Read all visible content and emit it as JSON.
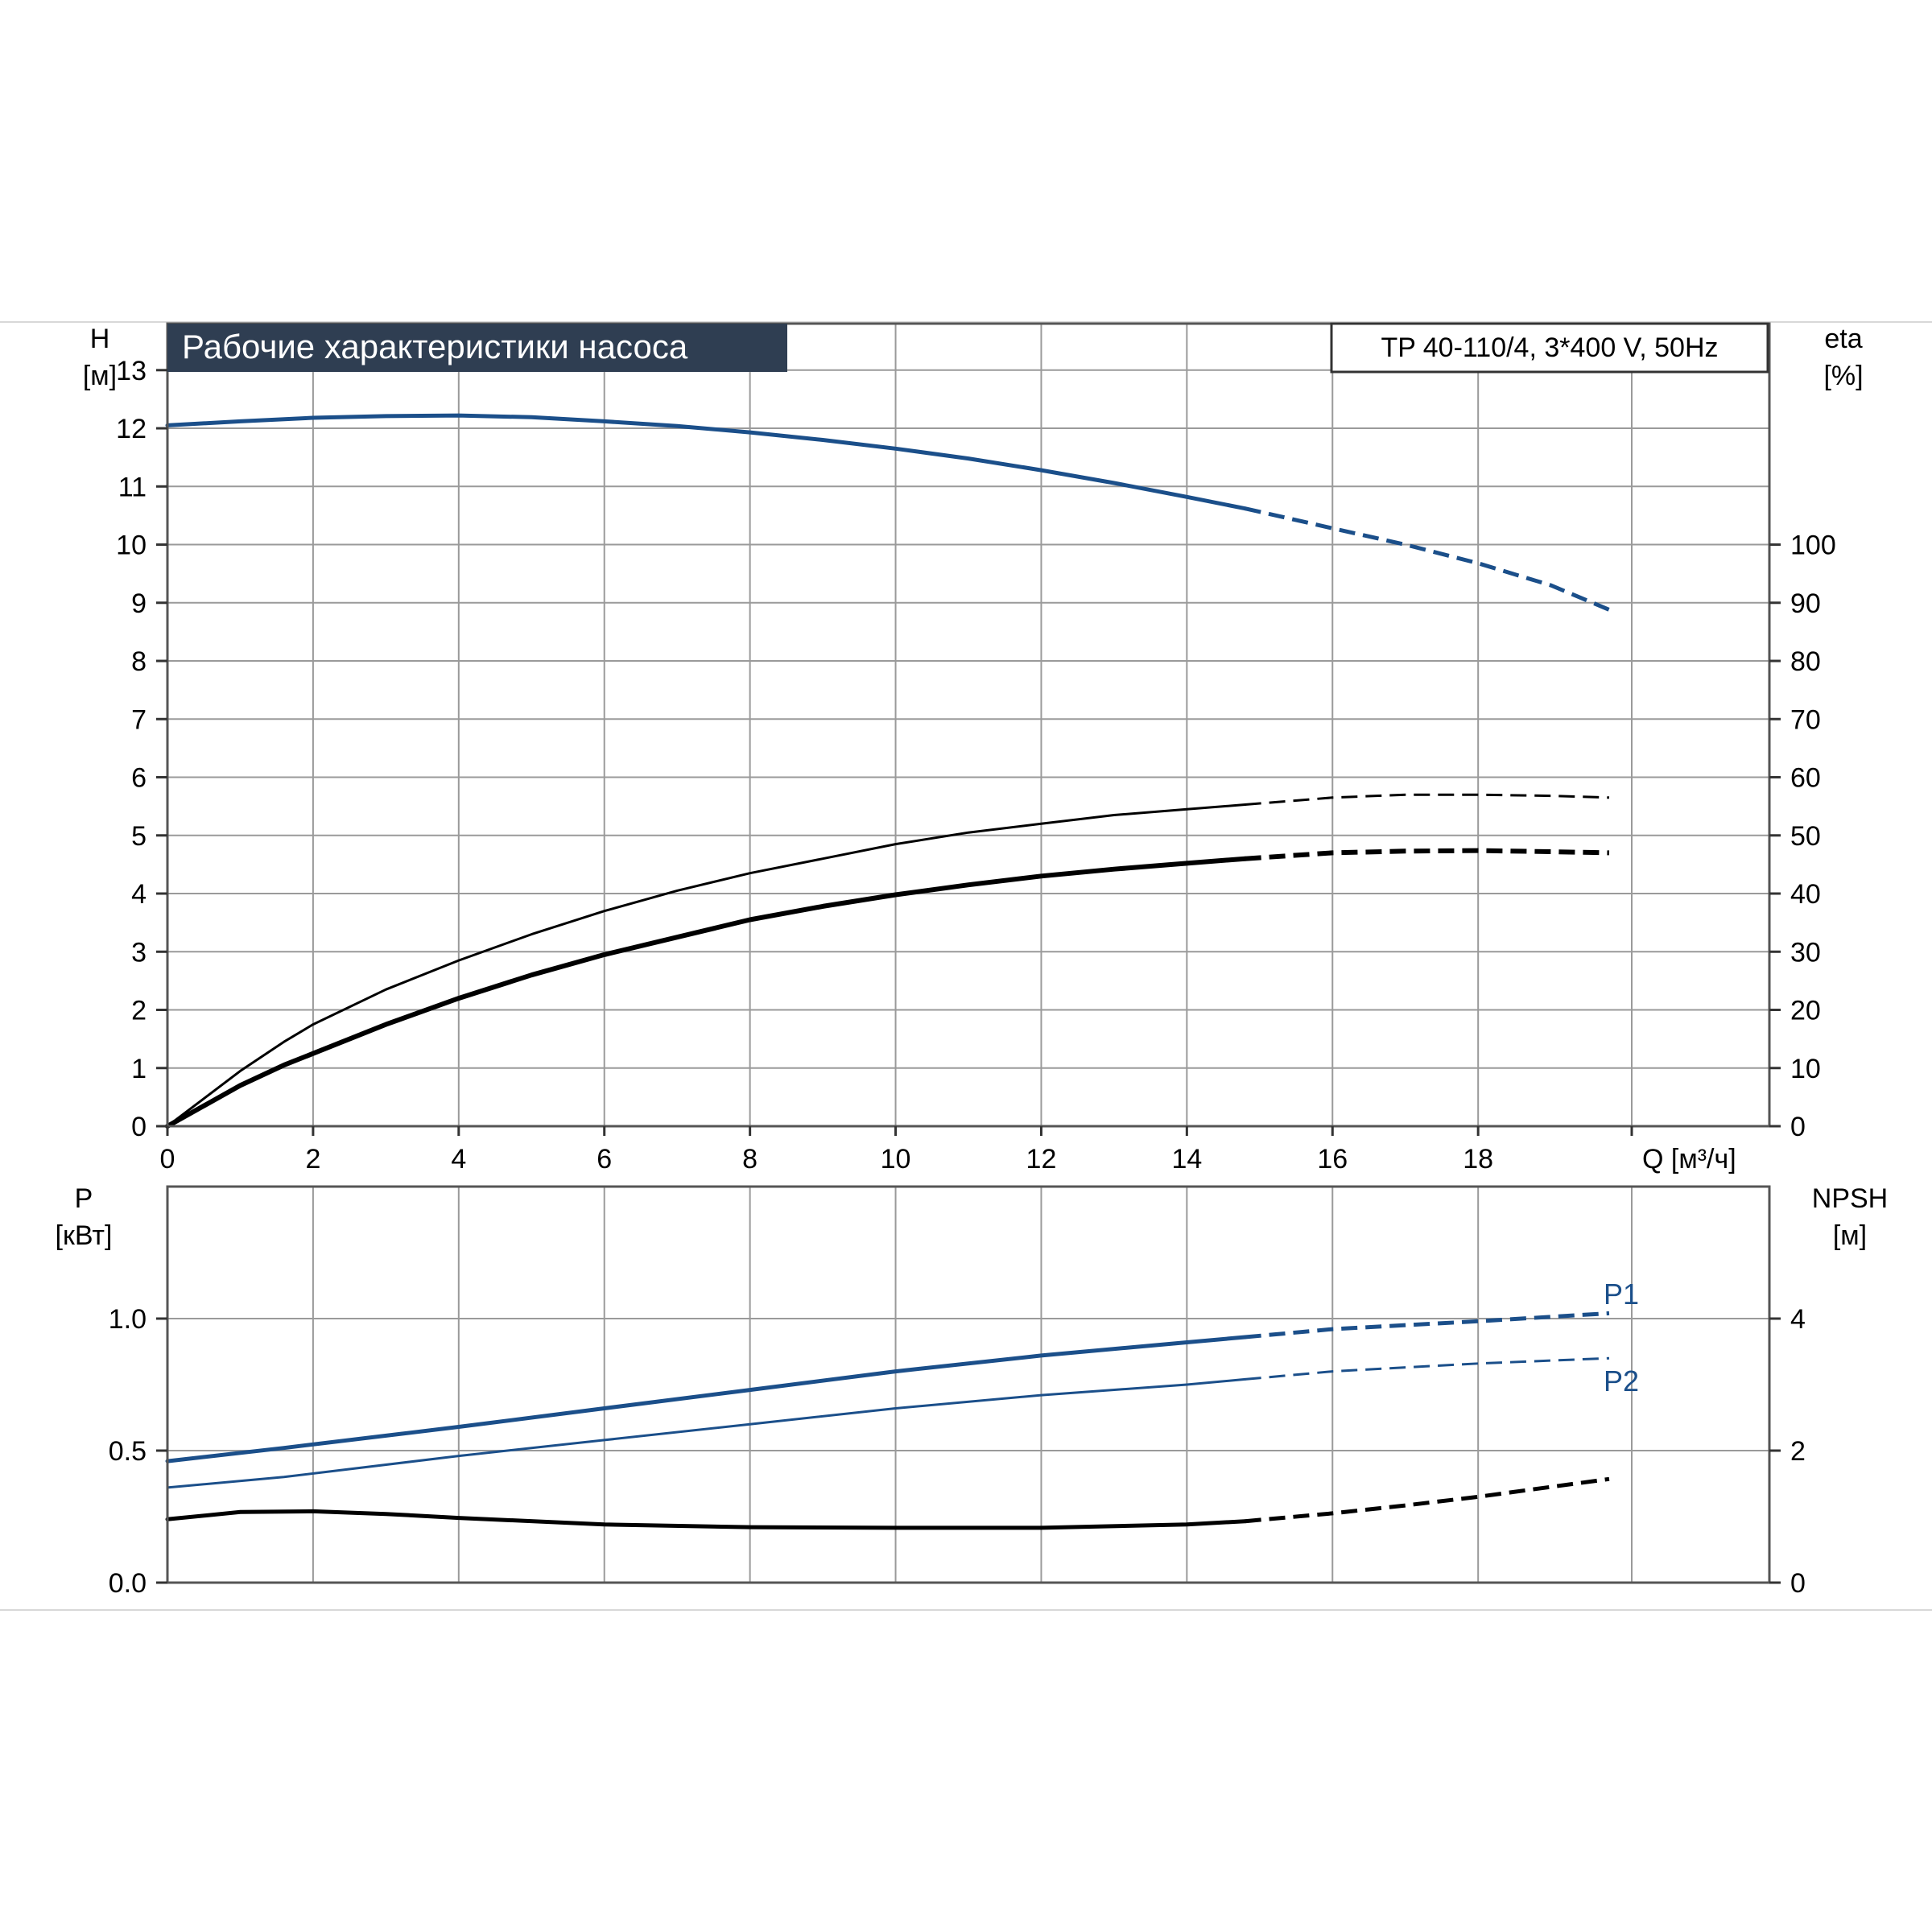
{
  "title": "Рабочие характеристики насоса",
  "model": "TP 40-110/4, 3*400 V, 50Hz",
  "colors": {
    "blue": "#1b4f8a",
    "black": "#000000",
    "grid": "#9a9a9a",
    "title_bg": "#2f3e52",
    "title_fg": "#ffffff"
  },
  "chart_data": [
    {
      "type": "line",
      "panel": "top",
      "xlabel": "Q [м³/ч]",
      "ylabel": "H",
      "ylabel_unit": "[м]",
      "y2label": "eta",
      "y2label_unit": "[%]",
      "xlim": [
        0,
        22
      ],
      "ylim": [
        0,
        13.8
      ],
      "y2lim": [
        0,
        138
      ],
      "xticks": [
        0,
        2,
        4,
        6,
        8,
        10,
        12,
        14,
        16,
        18
      ],
      "yticks": [
        0,
        1,
        2,
        3,
        4,
        5,
        6,
        7,
        8,
        9,
        10,
        11,
        12,
        13
      ],
      "y2ticks": [
        0,
        10,
        20,
        30,
        40,
        50,
        60,
        70,
        80,
        90,
        100
      ],
      "grid": true,
      "series": [
        {
          "name": "H",
          "axis": "left",
          "color": "#1b4f8a",
          "width": 5,
          "x": [
            0,
            1,
            2,
            3,
            4,
            5,
            6,
            7,
            8,
            9,
            10,
            11,
            12,
            13,
            14,
            14.8,
            16,
            17,
            18,
            19,
            19.8
          ],
          "y": [
            12.05,
            12.12,
            12.18,
            12.21,
            12.22,
            12.19,
            12.12,
            12.04,
            11.93,
            11.8,
            11.65,
            11.48,
            11.28,
            11.06,
            10.82,
            10.62,
            10.28,
            10.0,
            9.68,
            9.3,
            8.88
          ],
          "dashed_from": 14.8
        },
        {
          "name": "eta",
          "axis": "right",
          "color": "#000000",
          "width": 3,
          "x": [
            0,
            1,
            1.6,
            2,
            3,
            4,
            5,
            6,
            7,
            8,
            9,
            10,
            11,
            12,
            13,
            14,
            14.8,
            16,
            17,
            18,
            19,
            19.8
          ],
          "y": [
            0,
            9.5,
            14.5,
            17.5,
            23.5,
            28.5,
            33,
            37,
            40.5,
            43.5,
            46,
            48.5,
            50.5,
            52,
            53.5,
            54.5,
            55.3,
            56.5,
            57,
            57,
            56.8,
            56.5
          ],
          "dashed_from": 14.8
        },
        {
          "name": "eta",
          "axis": "right",
          "color": "#000000",
          "width": 6,
          "x": [
            0,
            1,
            1.6,
            2,
            3,
            4,
            5,
            6,
            7,
            8,
            9,
            10,
            11,
            12,
            13,
            14,
            14.8,
            16,
            17,
            18,
            19,
            19.8
          ],
          "y": [
            0,
            7,
            10.5,
            12.5,
            17.5,
            22,
            26,
            29.5,
            32.5,
            35.5,
            37.8,
            39.8,
            41.5,
            43,
            44.2,
            45.2,
            46,
            47,
            47.3,
            47.4,
            47.2,
            47
          ],
          "dashed_from": 14.8
        }
      ]
    },
    {
      "type": "line",
      "panel": "bottom",
      "ylabel": "P",
      "ylabel_unit": "[кВт]",
      "y2label": "NPSH",
      "y2label_unit": "[м]",
      "xlim": [
        0,
        22
      ],
      "ylim": [
        0,
        1.5
      ],
      "y2lim": [
        0,
        6
      ],
      "yticks": [
        0.0,
        0.5,
        1.0
      ],
      "y2ticks": [
        0,
        2,
        4
      ],
      "grid": true,
      "series": [
        {
          "name": "P1",
          "axis": "left",
          "color": "#1b4f8a",
          "width": 5,
          "x": [
            0,
            1.6,
            4,
            6,
            8,
            10,
            12,
            14,
            14.8,
            16,
            18,
            19.8
          ],
          "y": [
            0.46,
            0.51,
            0.59,
            0.66,
            0.73,
            0.8,
            0.86,
            0.91,
            0.93,
            0.96,
            0.99,
            1.02
          ],
          "dashed_from": 14.8
        },
        {
          "name": "P2",
          "axis": "left",
          "color": "#1b4f8a",
          "width": 3,
          "x": [
            0,
            1.6,
            4,
            6,
            8,
            10,
            12,
            14,
            14.8,
            16,
            18,
            19.8
          ],
          "y": [
            0.36,
            0.4,
            0.48,
            0.54,
            0.6,
            0.66,
            0.71,
            0.75,
            0.77,
            0.8,
            0.83,
            0.85
          ],
          "dashed_from": 14.8
        },
        {
          "name": "NPSH",
          "axis": "right",
          "color": "#000000",
          "width": 5,
          "x": [
            0,
            1,
            2,
            3,
            4,
            6,
            8,
            10,
            12,
            14,
            14.8,
            16,
            17,
            18,
            19,
            19.8
          ],
          "y": [
            0.96,
            1.07,
            1.08,
            1.04,
            0.98,
            0.88,
            0.84,
            0.83,
            0.83,
            0.88,
            0.93,
            1.05,
            1.17,
            1.3,
            1.45,
            1.57
          ],
          "dashed_from": 14.8
        }
      ]
    }
  ]
}
